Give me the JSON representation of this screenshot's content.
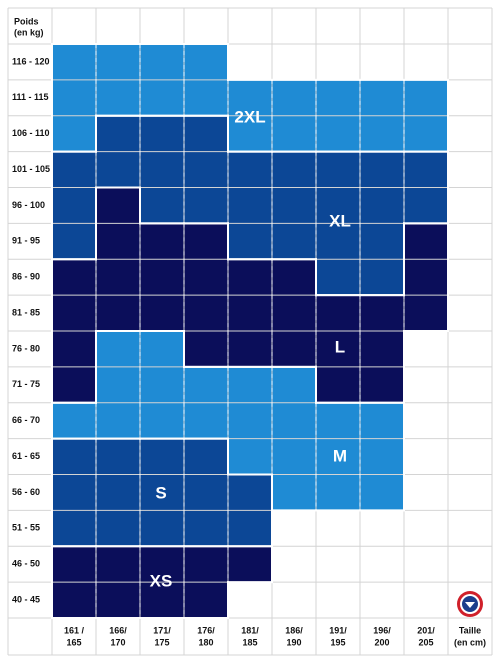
{
  "header": {
    "weight": [
      "Poids",
      "(en kg)"
    ],
    "height": [
      "Taille",
      "(en cm)"
    ]
  },
  "rows": [
    "116 - 120",
    "111 - 115",
    "106 - 110",
    "101 - 105",
    "96 - 100",
    "91 - 95",
    "86 - 90",
    "81 - 85",
    "76 - 80",
    "71 - 75",
    "66 - 70",
    "61 - 65",
    "56 - 60",
    "51 - 55",
    "46 - 50",
    "40 - 45"
  ],
  "columns": [
    [
      "161 /",
      "165"
    ],
    [
      "166/",
      "170"
    ],
    [
      "171/",
      "175"
    ],
    [
      "176/",
      "180"
    ],
    [
      "181/",
      "185"
    ],
    [
      "186/",
      "190"
    ],
    [
      "191/",
      "195"
    ],
    [
      "196/",
      "200"
    ],
    [
      "201/",
      "205"
    ]
  ],
  "sizes": [
    {
      "label": "2XL",
      "color": "#1f8bd4"
    },
    {
      "label": "XL",
      "color": "#0c4796"
    },
    {
      "label": "L",
      "color": "#0b0e5a"
    },
    {
      "label": "M",
      "color": "#1f8bd4"
    },
    {
      "label": "S",
      "color": "#0c4796"
    },
    {
      "label": "XS",
      "color": "#0b0e5a"
    }
  ]
}
